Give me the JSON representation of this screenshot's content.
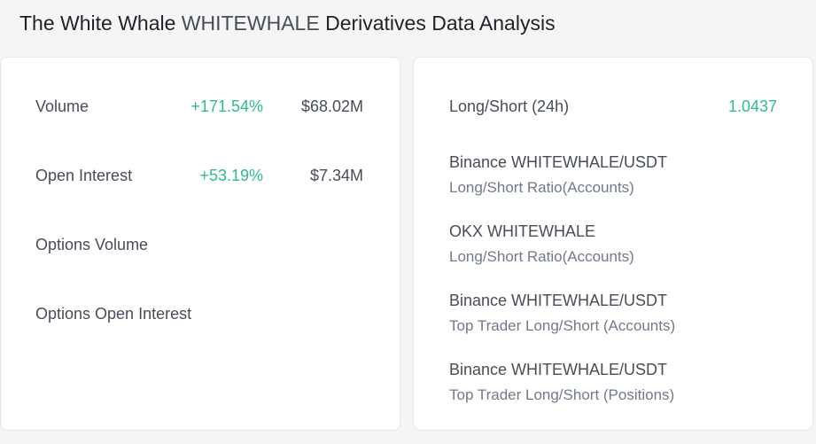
{
  "header": {
    "title_prefix": "The White Whale ",
    "title_ticker": "WHITEWHALE",
    "title_suffix": " Derivatives Data Analysis"
  },
  "metrics": [
    {
      "label": "Volume",
      "change": "+171.54%",
      "value": "$68.02M"
    },
    {
      "label": "Open Interest",
      "change": "+53.19%",
      "value": "$7.34M"
    },
    {
      "label": "Options Volume",
      "change": "",
      "value": ""
    },
    {
      "label": "Options Open Interest",
      "change": "",
      "value": ""
    }
  ],
  "long_short": {
    "label": "Long/Short (24h)",
    "value": "1.0437"
  },
  "ratio_links": [
    {
      "title": "Binance WHITEWHALE/USDT",
      "subtitle": "Long/Short Ratio(Accounts)"
    },
    {
      "title": "OKX WHITEWHALE",
      "subtitle": "Long/Short Ratio(Accounts)"
    },
    {
      "title": "Binance WHITEWHALE/USDT",
      "subtitle": "Top Trader Long/Short (Accounts)"
    },
    {
      "title": "Binance WHITEWHALE/USDT",
      "subtitle": "Top Trader Long/Short (Positions)"
    }
  ],
  "colors": {
    "positive": "#2ebd85",
    "text_primary": "#1e2329",
    "text_secondary": "#474d57",
    "text_muted": "#707a8a",
    "card_bg": "#ffffff",
    "page_bg": "#f5f5f5"
  }
}
